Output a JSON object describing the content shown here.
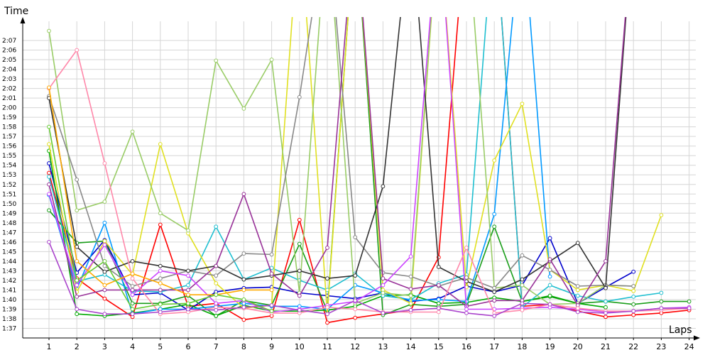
{
  "chart_data": {
    "type": "line",
    "title": "",
    "xlabel": "Laps",
    "ylabel": "Time",
    "x": [
      1,
      2,
      3,
      4,
      5,
      6,
      7,
      8,
      9,
      10,
      11,
      12,
      13,
      14,
      15,
      16,
      17,
      18,
      19,
      20,
      21,
      22,
      23,
      24
    ],
    "x_ticks": [
      "1",
      "2",
      "3",
      "4",
      "5",
      "6",
      "7",
      "8",
      "9",
      "10",
      "11",
      "12",
      "13",
      "14",
      "15",
      "16",
      "17",
      "18",
      "19",
      "20",
      "21",
      "22",
      "23",
      "24"
    ],
    "y_unit": "seconds",
    "ylim": [
      96,
      129
    ],
    "y_ticks": [
      "1:37",
      "1:38",
      "1:39",
      "1:40",
      "1:41",
      "1:42",
      "1:43",
      "1:44",
      "1:45",
      "1:46",
      "1:47",
      "1:48",
      "1:49",
      "1:50",
      "1:51",
      "1:52",
      "1:53",
      "1:54",
      "1:55",
      "1:56",
      "1:57",
      "1:58",
      "1:59",
      "2:00",
      "2:01",
      "2:02",
      "2:03",
      "2:04",
      "2:05",
      "2:06",
      "2:07"
    ],
    "y_tick_values": [
      97,
      98,
      99,
      100,
      101,
      102,
      103,
      104,
      105,
      106,
      107,
      108,
      109,
      110,
      111,
      112,
      113,
      114,
      115,
      116,
      117,
      118,
      119,
      120,
      121,
      122,
      123,
      124,
      125,
      126,
      127
    ],
    "grid": true,
    "legend": "none",
    "series": [
      {
        "color": "#ff0000",
        "values": [
          113.2,
          102.2,
          100.1,
          98.2,
          107.8,
          99.3,
          99.6,
          97.9,
          98.3,
          108.3,
          97.6,
          98.1,
          98.5,
          98.9,
          104.4,
          140,
          140,
          99.3,
          99.5,
          98.8,
          98.2,
          98.4,
          98.6,
          98.9
        ]
      },
      {
        "color": "#0000cc",
        "values": [
          114.2,
          102.8,
          106.2,
          100.5,
          100.7,
          98.9,
          100.8,
          101.2,
          101.3,
          100.7,
          100.4,
          100.1,
          100.7,
          99.8,
          100.1,
          101.4,
          100.8,
          101.5,
          106.4,
          99.6,
          101.3,
          102.9,
          null,
          null
        ]
      },
      {
        "color": "#1a9e1a",
        "values": [
          109.3,
          105.9,
          106.1,
          99.6,
          99.6,
          100.4,
          98.3,
          99.9,
          99.4,
          105.8,
          98.8,
          140,
          98.4,
          99.5,
          99.3,
          99.5,
          107.6,
          99.8,
          100.3,
          99.6,
          99.8,
          99.5,
          99.8,
          99.8
        ]
      },
      {
        "color": "#00aa00",
        "values": [
          115.5,
          98.5,
          98.3,
          98.6,
          99.0,
          99.5,
          98.3,
          99.4,
          98.8,
          98.8,
          98.9,
          99.3,
          100.4,
          100.5,
          99.6,
          99.7,
          100.2,
          99.8,
          100.4,
          99.6,
          99.2,
          null,
          null,
          null
        ]
      },
      {
        "color": "#1fbfd0",
        "values": [
          112.8,
          101.9,
          102.6,
          100.9,
          100.8,
          101.5,
          107.6,
          102.1,
          103.3,
          102.0,
          101.0,
          102.7,
          100.4,
          100.0,
          101.7,
          102.6,
          140,
          99.2,
          101.5,
          100.4,
          99.8,
          100.3,
          100.7,
          null
        ]
      },
      {
        "color": "#0099ff",
        "values": [
          110.9,
          101.1,
          108.0,
          98.5,
          99.0,
          99.0,
          99.3,
          99.6,
          99.3,
          99.3,
          99.0,
          101.5,
          100.7,
          99.9,
          100.0,
          99.8,
          108.9,
          140,
          102.4,
          null,
          null,
          null,
          null,
          null
        ]
      },
      {
        "color": "#e0e020",
        "values": [
          116.2,
          100.8,
          106.1,
          102.6,
          116.2,
          106.9,
          101.7,
          99.1,
          99.4,
          140,
          98.5,
          140,
          101.0,
          99.6,
          140,
          101.3,
          114.5,
          120.4,
          103.1,
          101.0,
          101.5,
          100.9,
          108.8,
          null
        ]
      },
      {
        "color": "#99cc66",
        "values": [
          128,
          109.3,
          110.2,
          117.5,
          109.0,
          107.2,
          124.9,
          119.9,
          125.0,
          100.7,
          140,
          99.6,
          100.7,
          100.4,
          140,
          140,
          101.2,
          101.5,
          99.5,
          99.6,
          101.5,
          101.4,
          null,
          null
        ]
      },
      {
        "color": "#888888",
        "values": [
          121.2,
          112.5,
          103.5,
          101.4,
          102.2,
          103.0,
          102.5,
          104.8,
          104.7,
          121.1,
          140,
          106.5,
          102.8,
          102.4,
          101.4,
          102.3,
          101.2,
          104.6,
          103.1,
          101.4,
          101.5,
          101.4,
          null,
          null
        ]
      },
      {
        "color": "#333333",
        "values": [
          121.0,
          105.5,
          102.9,
          104.0,
          103.5,
          103.0,
          103.5,
          102.1,
          102.5,
          103.0,
          102.2,
          102.5,
          111.8,
          140,
          103.4,
          101.9,
          100.8,
          102.1,
          104.0,
          105.9,
          101.2,
          140,
          null,
          null
        ]
      },
      {
        "color": "#993399",
        "values": [
          112.0,
          100.3,
          101.0,
          101.0,
          101.0,
          101.0,
          103.5,
          111.0,
          102.7,
          100.4,
          105.4,
          140,
          102.2,
          101.1,
          101.5,
          99.3,
          99.9,
          99.9,
          104.2,
          99.4,
          104.0,
          140,
          null,
          null
        ]
      },
      {
        "color": "#cc44ff",
        "values": [
          111.0,
          101.5,
          105.7,
          100.5,
          103.0,
          102.5,
          99.6,
          99.9,
          98.7,
          99.0,
          99.4,
          99.8,
          101.5,
          104.5,
          140,
          99.0,
          99.0,
          99.1,
          99.2,
          99.0,
          98.7,
          98.8,
          99.1,
          99.2
        ]
      },
      {
        "color": "#ff88aa",
        "values": [
          122.0,
          126.0,
          114.2,
          102.2,
          98.5,
          98.7,
          99.2,
          99.1,
          98.6,
          98.6,
          99.2,
          99.0,
          98.7,
          98.7,
          98.7,
          105.4,
          98.6,
          98.9,
          99.5,
          99.1,
          98.8,
          98.8,
          98.9,
          99.1
        ]
      },
      {
        "color": "#aa44cc",
        "values": [
          106.0,
          99.0,
          98.5,
          98.5,
          98.7,
          99.0,
          98.9,
          99.2,
          99.4,
          98.9,
          98.5,
          99.9,
          98.6,
          98.9,
          99.1,
          98.6,
          98.3,
          99.6,
          99.5,
          98.7,
          98.6,
          98.8,
          99.1,
          99.1
        ]
      },
      {
        "color": "#ffaa00",
        "values": [
          122.1,
          104.0,
          101.5,
          102.7,
          101.7,
          100.5,
          100.5,
          101.0,
          101.0,
          null,
          null,
          null,
          null,
          null,
          null,
          null,
          null,
          null,
          null,
          null,
          null,
          null,
          null,
          null
        ]
      },
      {
        "color": "#66cc33",
        "values": [
          118.0,
          102.0,
          104.0,
          99.0,
          99.5,
          99.6,
          100.5,
          100.0,
          98.8,
          null,
          null,
          null,
          null,
          null,
          null,
          null,
          null,
          null,
          null,
          null,
          null,
          null,
          null,
          null
        ]
      }
    ]
  }
}
